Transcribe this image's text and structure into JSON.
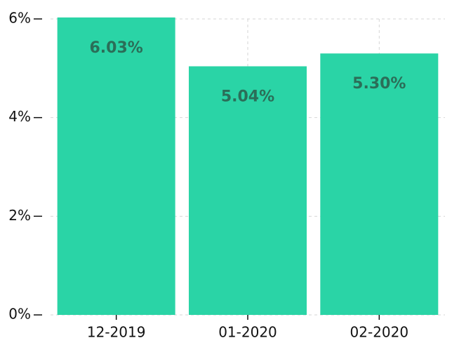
{
  "chart_data": {
    "type": "bar",
    "categories": [
      "12-2019",
      "01-2020",
      "02-2020"
    ],
    "values": [
      6.03,
      5.04,
      5.3
    ],
    "value_labels": [
      "6.03%",
      "5.04%",
      "5.30%"
    ],
    "color": "#2ad4a6",
    "ylim": [
      0,
      6
    ],
    "yticks": [
      {
        "value": 0,
        "label": "0%"
      },
      {
        "value": 2,
        "label": "2%"
      },
      {
        "value": 4,
        "label": "4%"
      },
      {
        "value": 6,
        "label": "6%"
      }
    ],
    "grid": true
  }
}
